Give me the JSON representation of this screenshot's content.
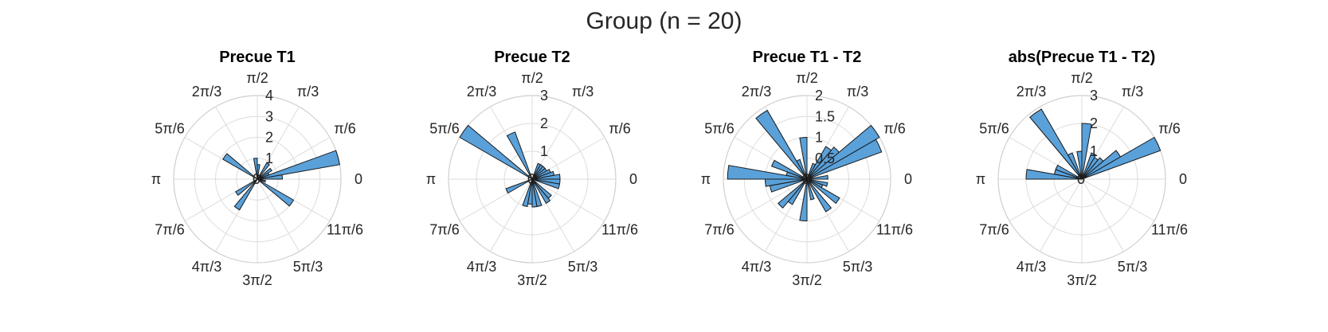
{
  "figure": {
    "suptitle": "Group (n = 20)",
    "bar_color": "#5aa1da",
    "edge_color": "#1a1a1a",
    "grid_color": "#dcdcdc"
  },
  "chart_data": [
    {
      "type": "polar-histogram",
      "title": "Precue T1",
      "rlim": [
        0,
        4
      ],
      "rticks": [
        "1",
        "2",
        "3",
        "4"
      ],
      "theta_tick_labels": [
        "0",
        "π/6",
        "π/3",
        "π/2",
        "2π/3",
        "5π/6",
        "π",
        "7π/6",
        "4π/3",
        "3π/2",
        "5π/3",
        "11π/6"
      ],
      "theta_centers_deg": [
        5,
        15,
        25,
        35,
        55,
        85,
        95,
        145,
        215,
        235,
        325,
        345
      ],
      "values": [
        1.2,
        4.0,
        0.6,
        0.8,
        0.9,
        0.7,
        1.0,
        1.9,
        1.2,
        1.7,
        2.0,
        0.4
      ]
    },
    {
      "type": "polar-histogram",
      "title": "Precue T2",
      "rlim": [
        0,
        3
      ],
      "rticks": [
        "1",
        "2",
        "3"
      ],
      "theta_tick_labels": [
        "0",
        "π/6",
        "π/3",
        "π/2",
        "2π/3",
        "5π/6",
        "π",
        "7π/6",
        "4π/3",
        "3π/2",
        "5π/3",
        "11π/6"
      ],
      "theta_centers_deg": [
        5,
        15,
        25,
        35,
        45,
        55,
        65,
        115,
        145,
        205,
        255,
        265,
        275,
        285,
        305,
        315,
        345,
        355
      ],
      "values": [
        1.0,
        0.8,
        0.7,
        0.6,
        0.6,
        0.6,
        0.6,
        1.8,
        3.0,
        1.0,
        1.0,
        0.9,
        1.0,
        1.0,
        1.0,
        0.9,
        1.0,
        1.0
      ]
    },
    {
      "type": "polar-histogram",
      "title": "Precue T1 - T2",
      "rlim": [
        0,
        2
      ],
      "rticks": [
        "0.5",
        "1",
        "1.5",
        "2"
      ],
      "theta_tick_labels": [
        "0",
        "π/6",
        "π/3",
        "π/2",
        "2π/3",
        "5π/6",
        "π",
        "7π/6",
        "4π/3",
        "3π/2",
        "5π/3",
        "11π/6"
      ],
      "theta_centers_deg": [
        5,
        25,
        35,
        45,
        55,
        65,
        95,
        115,
        125,
        155,
        165,
        175,
        185,
        195,
        225,
        235,
        265,
        285,
        305,
        325,
        335,
        345
      ],
      "values": [
        0.5,
        1.9,
        2.0,
        1.0,
        0.9,
        0.4,
        1.0,
        0.5,
        1.9,
        0.9,
        0.5,
        1.9,
        1.0,
        0.9,
        0.9,
        0.7,
        1.0,
        0.5,
        0.9,
        0.9,
        0.4,
        0.5
      ]
    },
    {
      "type": "polar-histogram",
      "title": "abs(Precue T1 - T2)",
      "rlim": [
        0,
        3
      ],
      "rticks": [
        "1",
        "2",
        "3"
      ],
      "theta_tick_labels": [
        "0",
        "π/6",
        "π/3",
        "π/2",
        "2π/3",
        "5π/6",
        "π",
        "7π/6",
        "4π/3",
        "3π/2",
        "5π/3",
        "11π/6"
      ],
      "theta_centers_deg": [
        25,
        35,
        45,
        55,
        65,
        85,
        95,
        115,
        125,
        155,
        165,
        175
      ],
      "values": [
        3.0,
        1.6,
        1.0,
        0.9,
        1.0,
        2.0,
        1.0,
        1.0,
        2.9,
        1.0,
        1.0,
        2.0
      ]
    }
  ]
}
